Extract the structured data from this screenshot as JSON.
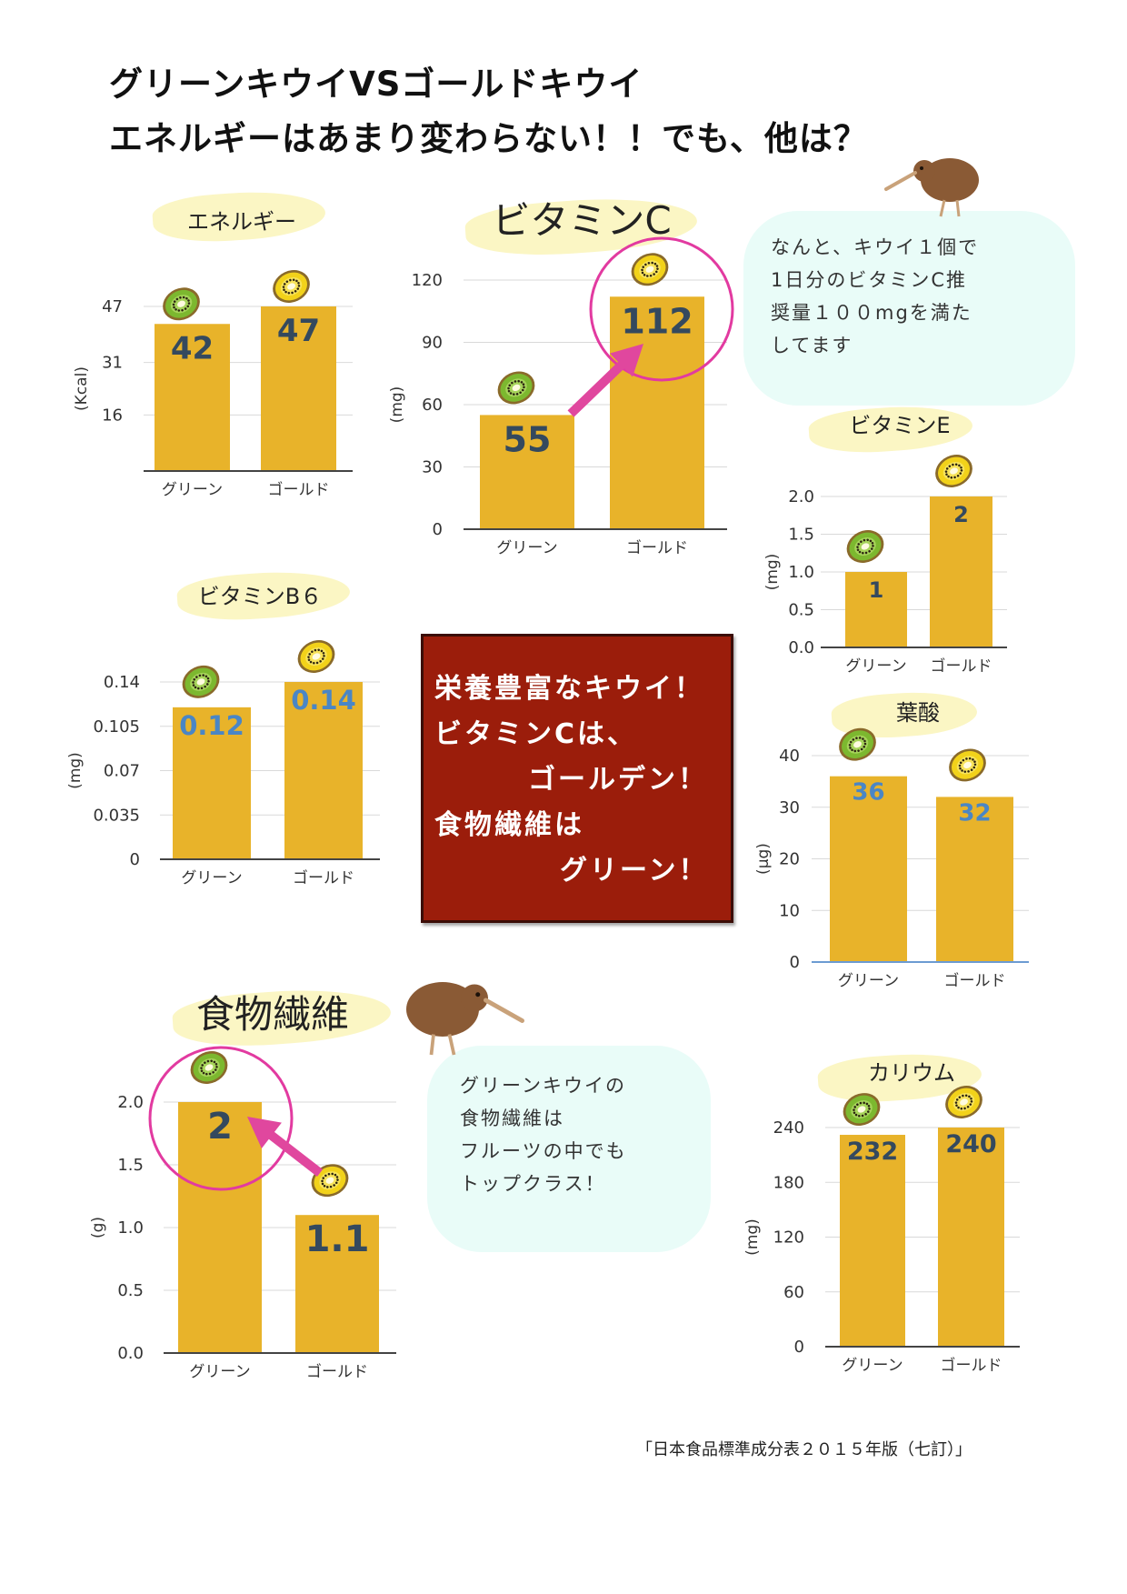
{
  "title": {
    "line1": "グリーンキウイVSゴールドキウイ",
    "line2": "エネルギーはあまり変わらない！！でも、他は？"
  },
  "bubbles": {
    "vitc": [
      "なんと、キウイ１個で",
      "1日分のビタミンC推",
      "奨量１００mgを満た",
      "してます"
    ],
    "fiber": [
      "グリーンキウイの",
      "食物繊維は",
      "フルーツの中でも",
      "トップクラス！"
    ]
  },
  "red_box": {
    "lines": [
      "栄養豊富なキウイ！",
      "ビタミンCは、",
      "ゴールデン！",
      "食物繊維は",
      "グリーン！"
    ]
  },
  "source": "「日本食品標準成分表２０１５年版（七訂）」",
  "colors": {
    "bar": "#e8b32a",
    "value_dark": "#34495e",
    "value_blue": "#4a86c5",
    "highlight": "#e23aa0",
    "arrow": "#e0479e",
    "red_box": "#9b1d0b"
  },
  "chart_data": [
    {
      "id": "energy",
      "type": "bar",
      "title": "エネルギー",
      "ylabel": "(Kcal)",
      "categories": [
        "グリーン",
        "ゴールド"
      ],
      "values": [
        42,
        47
      ],
      "value_labels": [
        "42",
        "47"
      ],
      "ticks": [
        16,
        31,
        47
      ],
      "tick_labels": [
        "16",
        "31",
        "47"
      ],
      "ylim": [
        0,
        47
      ]
    },
    {
      "id": "vitc",
      "type": "bar",
      "title": "ビタミンC",
      "ylabel": "(mg)",
      "categories": [
        "グリーン",
        "ゴールド"
      ],
      "values": [
        55,
        112
      ],
      "value_labels": [
        "55",
        "112"
      ],
      "ticks": [
        0,
        30,
        60,
        90,
        120
      ],
      "tick_labels": [
        "0",
        "30",
        "60",
        "90",
        "120"
      ],
      "ylim": [
        0,
        120
      ]
    },
    {
      "id": "vite",
      "type": "bar",
      "title": "ビタミンE",
      "ylabel": "(mg)",
      "categories": [
        "グリーン",
        "ゴールド"
      ],
      "values": [
        1,
        2
      ],
      "value_labels": [
        "1",
        "2"
      ],
      "ticks": [
        0,
        0.5,
        1,
        1.5,
        2
      ],
      "tick_labels": [
        "0.0",
        "0.5",
        "1.0",
        "1.5",
        "2.0"
      ],
      "ylim": [
        0,
        2
      ]
    },
    {
      "id": "b6",
      "type": "bar",
      "title": "ビタミンB６",
      "ylabel": "(mg)",
      "categories": [
        "グリーン",
        "ゴールド"
      ],
      "values": [
        0.12,
        0.14
      ],
      "value_labels": [
        "0.12",
        "0.14"
      ],
      "ticks": [
        0,
        0.035,
        0.07,
        0.105,
        0.14
      ],
      "tick_labels": [
        "0",
        "0.035",
        "0.07",
        "0.105",
        "0.14"
      ],
      "ylim": [
        0,
        0.14
      ]
    },
    {
      "id": "folate",
      "type": "bar",
      "title": "葉酸",
      "ylabel": "(μg)",
      "categories": [
        "グリーン",
        "ゴールド"
      ],
      "values": [
        36,
        32
      ],
      "value_labels": [
        "36",
        "32"
      ],
      "ticks": [
        0,
        10,
        20,
        30,
        40
      ],
      "tick_labels": [
        "0",
        "10",
        "20",
        "30",
        "40"
      ],
      "ylim": [
        0,
        40
      ]
    },
    {
      "id": "fiber",
      "type": "bar",
      "title": "食物繊維",
      "ylabel": "(g)",
      "categories": [
        "グリーン",
        "ゴールド"
      ],
      "values": [
        2,
        1.1
      ],
      "value_labels": [
        "2",
        "1.1"
      ],
      "ticks": [
        0,
        0.5,
        1,
        1.5,
        2
      ],
      "tick_labels": [
        "0.0",
        "0.5",
        "1.0",
        "1.5",
        "2.0"
      ],
      "ylim": [
        0,
        2
      ]
    },
    {
      "id": "potassium",
      "type": "bar",
      "title": "カリウム",
      "ylabel": "(mg)",
      "categories": [
        "グリーン",
        "ゴールド"
      ],
      "values": [
        232,
        240
      ],
      "value_labels": [
        "232",
        "240"
      ],
      "ticks": [
        0,
        60,
        120,
        180,
        240
      ],
      "tick_labels": [
        "0",
        "60",
        "120",
        "180",
        "240"
      ],
      "ylim": [
        0,
        240
      ]
    }
  ]
}
